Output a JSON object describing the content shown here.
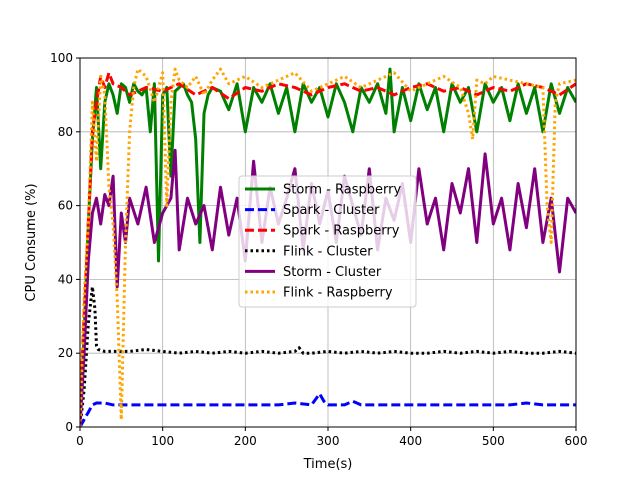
{
  "chart_data": {
    "type": "line",
    "title": "",
    "xlabel": "Time(s)",
    "ylabel": "CPU Consume (%)",
    "xlim": [
      0,
      600
    ],
    "ylim": [
      0,
      100
    ],
    "xticks": [
      0,
      100,
      200,
      300,
      400,
      500,
      600
    ],
    "yticks": [
      0,
      20,
      40,
      60,
      80,
      100
    ],
    "xtick_labels": [
      "0",
      "100",
      "200",
      "300",
      "400",
      "500",
      "600"
    ],
    "ytick_labels": [
      "0",
      "20",
      "40",
      "60",
      "80",
      "100"
    ],
    "grid": true,
    "legend_position": "center-right",
    "series": [
      {
        "name": "Storm - Raspberry",
        "color": "#008000",
        "dash": "solid",
        "x": [
          0,
          5,
          10,
          15,
          20,
          25,
          30,
          35,
          40,
          45,
          50,
          55,
          60,
          65,
          70,
          75,
          80,
          85,
          90,
          95,
          100,
          105,
          110,
          115,
          120,
          125,
          130,
          135,
          140,
          145,
          150,
          155,
          160,
          170,
          180,
          190,
          200,
          210,
          220,
          230,
          240,
          250,
          260,
          270,
          280,
          290,
          300,
          310,
          320,
          330,
          340,
          350,
          360,
          370,
          375,
          380,
          390,
          400,
          410,
          420,
          430,
          440,
          450,
          460,
          470,
          480,
          490,
          500,
          510,
          520,
          530,
          540,
          550,
          560,
          570,
          580,
          590,
          600
        ],
        "y": [
          2,
          25,
          55,
          78,
          92,
          70,
          88,
          93,
          90,
          85,
          93,
          92,
          88,
          93,
          91,
          90,
          92,
          80,
          93,
          45,
          90,
          92,
          68,
          91,
          92,
          93,
          90,
          88,
          78,
          50,
          85,
          90,
          92,
          91,
          86,
          93,
          80,
          92,
          88,
          93,
          85,
          92,
          80,
          93,
          88,
          92,
          84,
          93,
          88,
          80,
          92,
          88,
          93,
          85,
          97,
          80,
          92,
          83,
          93,
          86,
          92,
          80,
          93,
          88,
          92,
          80,
          93,
          88,
          92,
          83,
          93,
          85,
          92,
          80,
          93,
          85,
          92,
          88
        ]
      },
      {
        "name": "Spark - Cluster",
        "color": "#0000ff",
        "dash": "dashed",
        "x": [
          0,
          5,
          10,
          15,
          20,
          30,
          40,
          60,
          80,
          100,
          120,
          140,
          160,
          180,
          200,
          220,
          240,
          260,
          280,
          290,
          295,
          300,
          310,
          320,
          330,
          340,
          360,
          380,
          400,
          420,
          440,
          460,
          480,
          500,
          520,
          540,
          560,
          580,
          600
        ],
        "y": [
          0,
          2,
          4,
          6,
          6.5,
          6.5,
          6,
          6,
          6,
          6,
          6,
          6,
          6,
          6,
          6,
          6,
          6,
          6.5,
          6,
          9,
          7,
          6,
          6,
          6,
          7,
          6,
          6,
          6,
          6,
          6,
          6,
          6,
          6,
          6,
          6,
          6.5,
          6,
          6,
          6
        ]
      },
      {
        "name": "Spark - Raspberry",
        "color": "#ff0000",
        "dash": "dashed",
        "x": [
          0,
          5,
          10,
          15,
          20,
          25,
          30,
          35,
          40,
          50,
          60,
          80,
          100,
          120,
          140,
          160,
          180,
          200,
          220,
          240,
          260,
          280,
          300,
          320,
          340,
          360,
          380,
          400,
          420,
          440,
          460,
          480,
          500,
          520,
          540,
          560,
          580,
          600
        ],
        "y": [
          5,
          30,
          55,
          80,
          88,
          95,
          92,
          96,
          93,
          92,
          90,
          92,
          91,
          93,
          90,
          92,
          89,
          92,
          91,
          93,
          92,
          90,
          92,
          93,
          91,
          92,
          90,
          92,
          93,
          91,
          92,
          90,
          92,
          91,
          93,
          92,
          90,
          93
        ]
      },
      {
        "name": "Flink - Cluster",
        "color": "#000000",
        "dash": "dotted",
        "x": [
          0,
          5,
          10,
          15,
          18,
          20,
          22,
          30,
          40,
          60,
          80,
          100,
          120,
          140,
          160,
          180,
          200,
          220,
          240,
          260,
          265,
          270,
          280,
          300,
          320,
          340,
          360,
          380,
          400,
          420,
          440,
          460,
          480,
          500,
          520,
          540,
          560,
          580,
          600
        ],
        "y": [
          0,
          10,
          28,
          38,
          32,
          22,
          21,
          20.5,
          20.5,
          20.5,
          21,
          20.5,
          20,
          20.5,
          20,
          20.5,
          20,
          20.5,
          20,
          20.5,
          21.5,
          20,
          20,
          20.5,
          20,
          20.5,
          20,
          20.5,
          20,
          20,
          20.5,
          20,
          20.5,
          20,
          20.5,
          20,
          20,
          20.5,
          20
        ]
      },
      {
        "name": "Storm - Cluster",
        "color": "#800080",
        "dash": "solid",
        "x": [
          0,
          5,
          10,
          15,
          20,
          25,
          30,
          35,
          40,
          45,
          50,
          55,
          60,
          70,
          80,
          90,
          100,
          110,
          115,
          120,
          130,
          140,
          150,
          160,
          170,
          180,
          190,
          200,
          210,
          220,
          230,
          240,
          250,
          260,
          270,
          280,
          290,
          300,
          310,
          320,
          330,
          340,
          350,
          360,
          370,
          380,
          390,
          400,
          410,
          420,
          430,
          440,
          450,
          460,
          470,
          480,
          490,
          500,
          510,
          520,
          530,
          540,
          550,
          560,
          570,
          580,
          590,
          600
        ],
        "y": [
          0,
          20,
          45,
          58,
          62,
          55,
          63,
          60,
          68,
          38,
          58,
          50,
          62,
          55,
          65,
          50,
          58,
          62,
          75,
          48,
          62,
          55,
          60,
          48,
          65,
          52,
          62,
          45,
          72,
          50,
          65,
          55,
          62,
          70,
          48,
          66,
          55,
          64,
          50,
          68,
          60,
          52,
          70,
          48,
          62,
          56,
          66,
          50,
          70,
          55,
          62,
          48,
          66,
          58,
          70,
          50,
          74,
          55,
          62,
          48,
          66,
          54,
          70,
          50,
          62,
          42,
          62,
          58
        ]
      },
      {
        "name": "Flink - Raspberry",
        "color": "#ffa500",
        "dash": "dotted",
        "x": [
          0,
          5,
          10,
          15,
          20,
          25,
          30,
          35,
          40,
          45,
          50,
          55,
          60,
          65,
          70,
          80,
          90,
          100,
          105,
          110,
          115,
          120,
          130,
          140,
          150,
          160,
          170,
          180,
          200,
          220,
          240,
          260,
          280,
          300,
          320,
          340,
          360,
          380,
          400,
          420,
          440,
          460,
          470,
          475,
          480,
          490,
          500,
          520,
          540,
          560,
          565,
          570,
          575,
          580,
          600
        ],
        "y": [
          0,
          35,
          55,
          88,
          72,
          95,
          90,
          65,
          55,
          35,
          2,
          50,
          80,
          92,
          97,
          95,
          88,
          96,
          60,
          88,
          97,
          94,
          92,
          95,
          90,
          94,
          97,
          93,
          95,
          92,
          94,
          96,
          91,
          93,
          95,
          92,
          94,
          96,
          91,
          93,
          95,
          92,
          85,
          78,
          94,
          93,
          95,
          94,
          93,
          92,
          60,
          50,
          88,
          93,
          94
        ]
      }
    ]
  }
}
